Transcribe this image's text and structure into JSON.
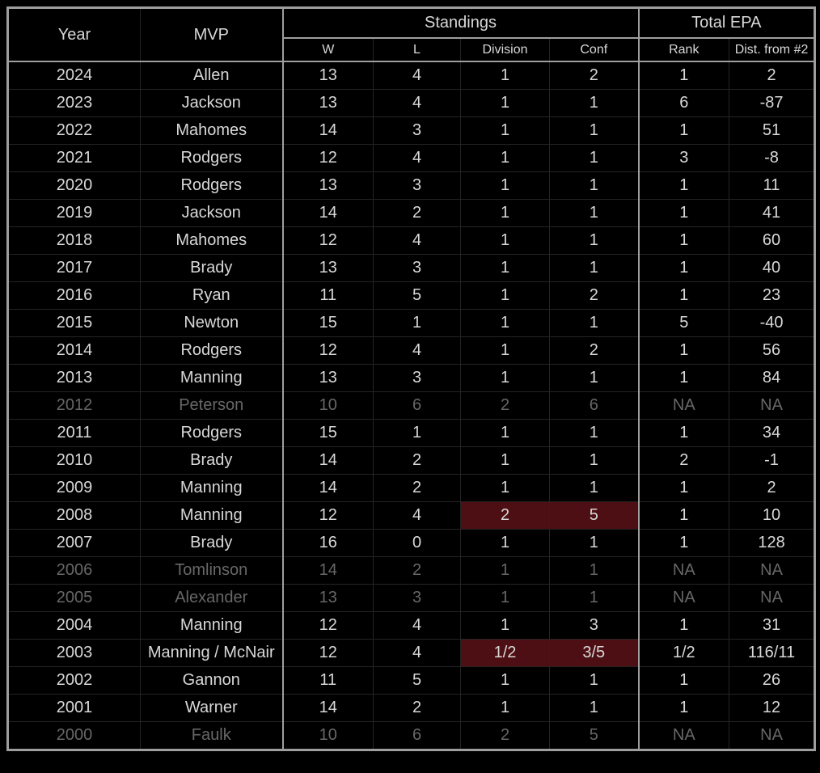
{
  "colors": {
    "background": "#000000",
    "text": "#d8d8d8",
    "dimmed_text": "#676767",
    "grid_major": "#9e9e9e",
    "grid_minor": "#242424",
    "highlight": "#4e0f14"
  },
  "chart_data": {
    "type": "table",
    "header": {
      "year_label": "Year",
      "mvp_label": "MVP",
      "standings_label": "Standings",
      "total_epa_label": "Total EPA",
      "subcolumns": [
        "W",
        "L",
        "Division",
        "Conf",
        "Rank",
        "Dist. from #2"
      ]
    },
    "rows": [
      {
        "year": "2024",
        "mvp": "Allen",
        "cells": [
          "13",
          "4",
          "1",
          "2",
          "1",
          "2"
        ],
        "dimmed": false,
        "highlight_cols": []
      },
      {
        "year": "2023",
        "mvp": "Jackson",
        "cells": [
          "13",
          "4",
          "1",
          "1",
          "6",
          "-87"
        ],
        "dimmed": false,
        "highlight_cols": []
      },
      {
        "year": "2022",
        "mvp": "Mahomes",
        "cells": [
          "14",
          "3",
          "1",
          "1",
          "1",
          "51"
        ],
        "dimmed": false,
        "highlight_cols": []
      },
      {
        "year": "2021",
        "mvp": "Rodgers",
        "cells": [
          "12",
          "4",
          "1",
          "1",
          "3",
          "-8"
        ],
        "dimmed": false,
        "highlight_cols": []
      },
      {
        "year": "2020",
        "mvp": "Rodgers",
        "cells": [
          "13",
          "3",
          "1",
          "1",
          "1",
          "11"
        ],
        "dimmed": false,
        "highlight_cols": []
      },
      {
        "year": "2019",
        "mvp": "Jackson",
        "cells": [
          "14",
          "2",
          "1",
          "1",
          "1",
          "41"
        ],
        "dimmed": false,
        "highlight_cols": []
      },
      {
        "year": "2018",
        "mvp": "Mahomes",
        "cells": [
          "12",
          "4",
          "1",
          "1",
          "1",
          "60"
        ],
        "dimmed": false,
        "highlight_cols": []
      },
      {
        "year": "2017",
        "mvp": "Brady",
        "cells": [
          "13",
          "3",
          "1",
          "1",
          "1",
          "40"
        ],
        "dimmed": false,
        "highlight_cols": []
      },
      {
        "year": "2016",
        "mvp": "Ryan",
        "cells": [
          "11",
          "5",
          "1",
          "2",
          "1",
          "23"
        ],
        "dimmed": false,
        "highlight_cols": []
      },
      {
        "year": "2015",
        "mvp": "Newton",
        "cells": [
          "15",
          "1",
          "1",
          "1",
          "5",
          "-40"
        ],
        "dimmed": false,
        "highlight_cols": []
      },
      {
        "year": "2014",
        "mvp": "Rodgers",
        "cells": [
          "12",
          "4",
          "1",
          "2",
          "1",
          "56"
        ],
        "dimmed": false,
        "highlight_cols": []
      },
      {
        "year": "2013",
        "mvp": "Manning",
        "cells": [
          "13",
          "3",
          "1",
          "1",
          "1",
          "84"
        ],
        "dimmed": false,
        "highlight_cols": []
      },
      {
        "year": "2012",
        "mvp": "Peterson",
        "cells": [
          "10",
          "6",
          "2",
          "6",
          "NA",
          "NA"
        ],
        "dimmed": true,
        "highlight_cols": []
      },
      {
        "year": "2011",
        "mvp": "Rodgers",
        "cells": [
          "15",
          "1",
          "1",
          "1",
          "1",
          "34"
        ],
        "dimmed": false,
        "highlight_cols": []
      },
      {
        "year": "2010",
        "mvp": "Brady",
        "cells": [
          "14",
          "2",
          "1",
          "1",
          "2",
          "-1"
        ],
        "dimmed": false,
        "highlight_cols": []
      },
      {
        "year": "2009",
        "mvp": "Manning",
        "cells": [
          "14",
          "2",
          "1",
          "1",
          "1",
          "2"
        ],
        "dimmed": false,
        "highlight_cols": []
      },
      {
        "year": "2008",
        "mvp": "Manning",
        "cells": [
          "12",
          "4",
          "2",
          "5",
          "1",
          "10"
        ],
        "dimmed": false,
        "highlight_cols": [
          2,
          3
        ]
      },
      {
        "year": "2007",
        "mvp": "Brady",
        "cells": [
          "16",
          "0",
          "1",
          "1",
          "1",
          "128"
        ],
        "dimmed": false,
        "highlight_cols": []
      },
      {
        "year": "2006",
        "mvp": "Tomlinson",
        "cells": [
          "14",
          "2",
          "1",
          "1",
          "NA",
          "NA"
        ],
        "dimmed": true,
        "highlight_cols": []
      },
      {
        "year": "2005",
        "mvp": "Alexander",
        "cells": [
          "13",
          "3",
          "1",
          "1",
          "NA",
          "NA"
        ],
        "dimmed": true,
        "highlight_cols": []
      },
      {
        "year": "2004",
        "mvp": "Manning",
        "cells": [
          "12",
          "4",
          "1",
          "3",
          "1",
          "31"
        ],
        "dimmed": false,
        "highlight_cols": []
      },
      {
        "year": "2003",
        "mvp": "Manning / McNair",
        "cells": [
          "12",
          "4",
          "1/2",
          "3/5",
          "1/2",
          "116/11"
        ],
        "dimmed": false,
        "highlight_cols": [
          2,
          3
        ]
      },
      {
        "year": "2002",
        "mvp": "Gannon",
        "cells": [
          "11",
          "5",
          "1",
          "1",
          "1",
          "26"
        ],
        "dimmed": false,
        "highlight_cols": []
      },
      {
        "year": "2001",
        "mvp": "Warner",
        "cells": [
          "14",
          "2",
          "1",
          "1",
          "1",
          "12"
        ],
        "dimmed": false,
        "highlight_cols": []
      },
      {
        "year": "2000",
        "mvp": "Faulk",
        "cells": [
          "10",
          "6",
          "2",
          "5",
          "NA",
          "NA"
        ],
        "dimmed": true,
        "highlight_cols": []
      }
    ]
  }
}
